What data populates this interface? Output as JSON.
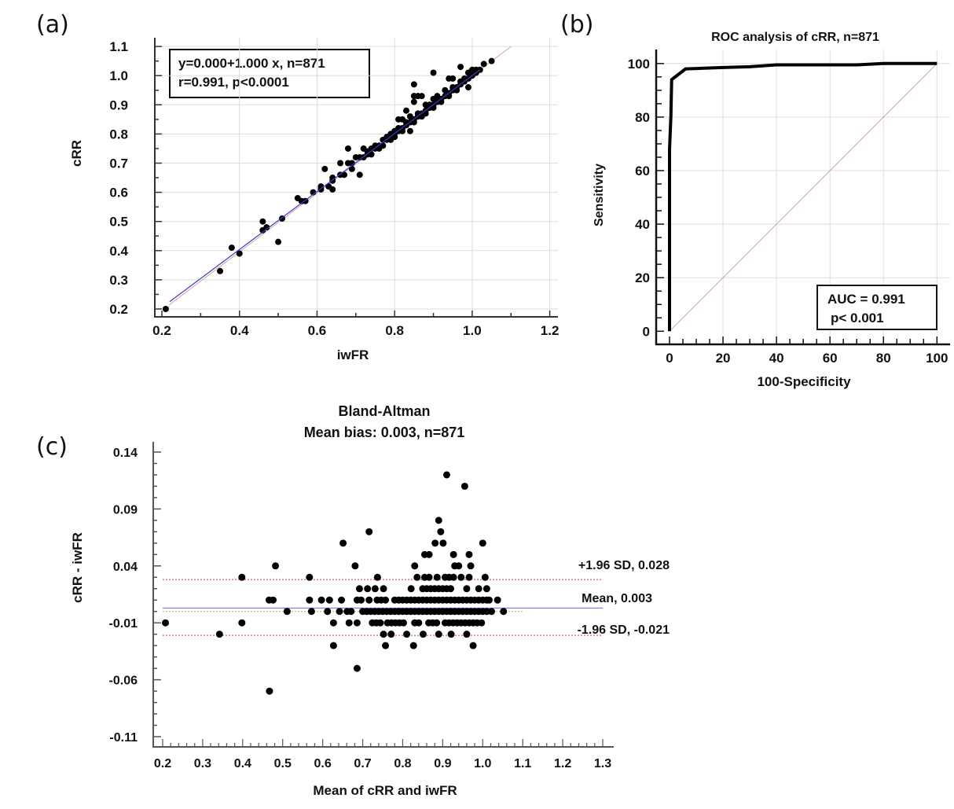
{
  "panel_labels": {
    "a": "(a)",
    "b": "(b)",
    "c": "(c)"
  },
  "chart_data": [
    {
      "panel": "(a)",
      "type": "scatter",
      "xlabel": "iwFR",
      "ylabel": "cRR",
      "xlim": [
        0.2,
        1.2
      ],
      "ylim": [
        0.2,
        1.1
      ],
      "xticks": [
        "0.2",
        "0.4",
        "0.6",
        "0.8",
        "1.0",
        "1.2"
      ],
      "yticks": [
        "0.2",
        "0.3",
        "0.4",
        "0.5",
        "0.6",
        "0.7",
        "0.8",
        "0.9",
        "1.0",
        "1.1"
      ],
      "grid": true,
      "annotation": [
        "y=0.000+1.000 x, n=871",
        "r=0.991, p<0.0001"
      ],
      "regression_line": {
        "intercept": 0.0,
        "slope": 1.0,
        "color": "#3a3ad0"
      },
      "identity_line_color": "#e0a0a0",
      "point_color": "#000000",
      "points": [
        [
          0.21,
          0.2
        ],
        [
          0.35,
          0.33
        ],
        [
          0.38,
          0.41
        ],
        [
          0.4,
          0.39
        ],
        [
          0.46,
          0.5
        ],
        [
          0.46,
          0.47
        ],
        [
          0.47,
          0.48
        ],
        [
          0.5,
          0.43
        ],
        [
          0.51,
          0.51
        ],
        [
          0.55,
          0.58
        ],
        [
          0.56,
          0.57
        ],
        [
          0.57,
          0.57
        ],
        [
          0.59,
          0.6
        ],
        [
          0.61,
          0.62
        ],
        [
          0.61,
          0.61
        ],
        [
          0.62,
          0.68
        ],
        [
          0.63,
          0.62
        ],
        [
          0.64,
          0.61
        ],
        [
          0.64,
          0.65
        ],
        [
          0.64,
          0.64
        ],
        [
          0.66,
          0.7
        ],
        [
          0.66,
          0.66
        ],
        [
          0.67,
          0.66
        ],
        [
          0.68,
          0.75
        ],
        [
          0.68,
          0.7
        ],
        [
          0.69,
          0.68
        ],
        [
          0.69,
          0.7
        ],
        [
          0.71,
          0.66
        ],
        [
          0.7,
          0.72
        ],
        [
          0.71,
          0.72
        ],
        [
          0.72,
          0.75
        ],
        [
          0.72,
          0.72
        ],
        [
          0.73,
          0.73
        ],
        [
          0.73,
          0.74
        ],
        [
          0.74,
          0.75
        ],
        [
          0.74,
          0.73
        ],
        [
          0.75,
          0.75
        ],
        [
          0.75,
          0.76
        ],
        [
          0.76,
          0.75
        ],
        [
          0.76,
          0.76
        ],
        [
          0.77,
          0.78
        ],
        [
          0.77,
          0.76
        ],
        [
          0.78,
          0.78
        ],
        [
          0.78,
          0.79
        ],
        [
          0.79,
          0.78
        ],
        [
          0.79,
          0.8
        ],
        [
          0.8,
          0.8
        ],
        [
          0.8,
          0.81
        ],
        [
          0.8,
          0.79
        ],
        [
          0.81,
          0.81
        ],
        [
          0.81,
          0.82
        ],
        [
          0.81,
          0.85
        ],
        [
          0.82,
          0.82
        ],
        [
          0.82,
          0.85
        ],
        [
          0.82,
          0.81
        ],
        [
          0.83,
          0.83
        ],
        [
          0.83,
          0.88
        ],
        [
          0.83,
          0.84
        ],
        [
          0.84,
          0.84
        ],
        [
          0.84,
          0.81
        ],
        [
          0.84,
          0.86
        ],
        [
          0.85,
          0.85
        ],
        [
          0.85,
          0.97
        ],
        [
          0.85,
          0.93
        ],
        [
          0.85,
          0.91
        ],
        [
          0.85,
          0.84
        ],
        [
          0.86,
          0.86
        ],
        [
          0.86,
          0.93
        ],
        [
          0.86,
          0.87
        ],
        [
          0.87,
          0.87
        ],
        [
          0.87,
          0.93
        ],
        [
          0.87,
          0.86
        ],
        [
          0.88,
          0.88
        ],
        [
          0.88,
          0.9
        ],
        [
          0.88,
          0.87
        ],
        [
          0.89,
          0.89
        ],
        [
          0.89,
          0.9
        ],
        [
          0.9,
          0.9
        ],
        [
          0.9,
          1.01
        ],
        [
          0.9,
          0.92
        ],
        [
          0.9,
          0.89
        ],
        [
          0.91,
          0.91
        ],
        [
          0.91,
          0.93
        ],
        [
          0.92,
          0.92
        ],
        [
          0.92,
          0.91
        ],
        [
          0.93,
          0.93
        ],
        [
          0.93,
          0.95
        ],
        [
          0.94,
          0.94
        ],
        [
          0.94,
          0.99
        ],
        [
          0.94,
          0.93
        ],
        [
          0.95,
          0.95
        ],
        [
          0.95,
          0.99
        ],
        [
          0.95,
          0.96
        ],
        [
          0.96,
          0.96
        ],
        [
          0.96,
          0.95
        ],
        [
          0.97,
          0.97
        ],
        [
          0.97,
          1.03
        ],
        [
          0.97,
          0.98
        ],
        [
          0.98,
          0.98
        ],
        [
          0.98,
          0.99
        ],
        [
          0.99,
          0.99
        ],
        [
          0.99,
          0.96
        ],
        [
          0.99,
          1.01
        ],
        [
          1.0,
          1.0
        ],
        [
          1.0,
          1.02
        ],
        [
          1.01,
          1.01
        ],
        [
          1.01,
          1.02
        ],
        [
          1.02,
          1.02
        ],
        [
          1.03,
          1.04
        ],
        [
          1.05,
          1.05
        ]
      ]
    },
    {
      "panel": "(b)",
      "type": "line",
      "title": "ROC analysis of cRR, n=871",
      "xlabel": "100-Specificity",
      "ylabel": "Sensitivity",
      "xlim": [
        0,
        100
      ],
      "ylim": [
        0,
        100
      ],
      "xticks": [
        "0",
        "20",
        "40",
        "60",
        "80",
        "100"
      ],
      "yticks": [
        "0",
        "20",
        "40",
        "60",
        "80",
        "100"
      ],
      "grid": true,
      "annotation": [
        "AUC = 0.991",
        "p< 0.001"
      ],
      "curve_color": "#000000",
      "reference_line_color": "#d9a0a0",
      "x": [
        0,
        0,
        0.5,
        0.8,
        6,
        20,
        30,
        40,
        70,
        80,
        100
      ],
      "y": [
        0,
        68,
        80,
        94,
        98,
        98.5,
        98.8,
        99.5,
        99.5,
        100,
        100
      ]
    },
    {
      "panel": "(c)",
      "type": "scatter",
      "title": "Bland-Altman",
      "subtitle": "Mean bias: 0.003, n=871",
      "xlabel": "Mean of cRR and iwFR",
      "ylabel": "cRR - iwFR",
      "xlim": [
        0.2,
        1.3
      ],
      "ylim": [
        -0.11,
        0.14
      ],
      "xticks": [
        "0.2",
        "0.3",
        "0.4",
        "0.5",
        "0.6",
        "0.7",
        "0.8",
        "0.9",
        "1.0",
        "1.1",
        "1.2",
        "1.3"
      ],
      "yticks": [
        "0.14",
        "0.09",
        "0.04",
        "-0.01",
        "-0.06",
        "-0.11"
      ],
      "grid": false,
      "reference_lines": [
        {
          "label": "+1.96 SD, 0.028",
          "value": 0.028,
          "color": "#c04040",
          "style": "dotted"
        },
        {
          "label": "Mean, 0.003",
          "value": 0.003,
          "color": "#6a6ad8",
          "style": "solid"
        },
        {
          "label": "-1.96 SD, -0.021",
          "value": -0.021,
          "color": "#c04040",
          "style": "dotted"
        }
      ],
      "trend_line": {
        "value": 0.0,
        "color": "#f0a040",
        "style": "dotted",
        "x_range": [
          0.2,
          1.1
        ]
      },
      "point_color": "#000000",
      "rows": [
        {
          "diff": 0.12,
          "mean": [
            0.91
          ]
        },
        {
          "diff": 0.11,
          "mean": [
            0.955
          ]
        },
        {
          "diff": 0.08,
          "mean": [
            0.89
          ]
        },
        {
          "diff": 0.07,
          "mean": [
            0.716,
            0.895
          ]
        },
        {
          "diff": 0.06,
          "mean": [
            0.651,
            0.881,
            0.901,
            1.0
          ]
        },
        {
          "diff": 0.05,
          "mean": [
            0.855,
            0.866,
            0.927,
            0.966
          ]
        },
        {
          "diff": 0.04,
          "mean": [
            0.482,
            0.681,
            0.83,
            0.93,
            0.94,
            0.97
          ]
        },
        {
          "diff": 0.03,
          "mean": [
            0.398,
            0.567,
            0.737,
            0.836,
            0.855,
            0.866,
            0.886,
            0.906,
            0.916,
            0.927,
            0.946,
            0.966,
            1.006
          ]
        },
        {
          "diff": 0.02,
          "mean": [
            0.692,
            0.712,
            0.731,
            0.752,
            0.821,
            0.85,
            0.86,
            0.87,
            0.88,
            0.89,
            0.9,
            0.91,
            0.92,
            0.96,
            0.99,
            1.01
          ]
        },
        {
          "diff": 0.01,
          "mean": [
            0.466,
            0.476,
            0.567,
            0.597,
            0.617,
            0.647,
            0.686,
            0.696,
            0.716,
            0.736,
            0.746,
            0.757,
            0.78,
            0.79,
            0.8,
            0.81,
            0.82,
            0.83,
            0.84,
            0.85,
            0.86,
            0.87,
            0.88,
            0.89,
            0.9,
            0.91,
            0.92,
            0.93,
            0.94,
            0.95,
            0.96,
            0.97,
            0.98,
            0.99,
            1.0,
            1.01,
            1.016,
            1.037
          ]
        },
        {
          "diff": 0.0,
          "mean": [
            0.511,
            0.572,
            0.612,
            0.642,
            0.661,
            0.671,
            0.7,
            0.71,
            0.72,
            0.73,
            0.74,
            0.75,
            0.76,
            0.77,
            0.78,
            0.79,
            0.8,
            0.81,
            0.82,
            0.83,
            0.84,
            0.85,
            0.86,
            0.87,
            0.88,
            0.89,
            0.9,
            0.91,
            0.92,
            0.93,
            0.94,
            0.95,
            0.96,
            0.97,
            0.98,
            0.99,
            1.0,
            1.01,
            1.022,
            1.052
          ]
        },
        {
          "diff": -0.01,
          "mean": [
            0.207,
            0.398,
            0.627,
            0.666,
            0.686,
            0.724,
            0.734,
            0.744,
            0.762,
            0.772,
            0.782,
            0.792,
            0.802,
            0.83,
            0.84,
            0.865,
            0.875,
            0.885,
            0.906,
            0.916,
            0.926,
            0.936,
            0.946,
            0.956,
            0.966,
            0.976,
            0.986,
            0.997
          ]
        },
        {
          "diff": -0.02,
          "mean": [
            0.342,
            0.752,
            0.771,
            0.81,
            0.851,
            0.89,
            0.921,
            0.96
          ]
        },
        {
          "diff": -0.03,
          "mean": [
            0.627,
            0.757,
            0.827,
            0.976
          ]
        },
        {
          "diff": -0.05,
          "mean": [
            0.686
          ]
        },
        {
          "diff": -0.07,
          "mean": [
            0.467
          ]
        }
      ]
    }
  ]
}
